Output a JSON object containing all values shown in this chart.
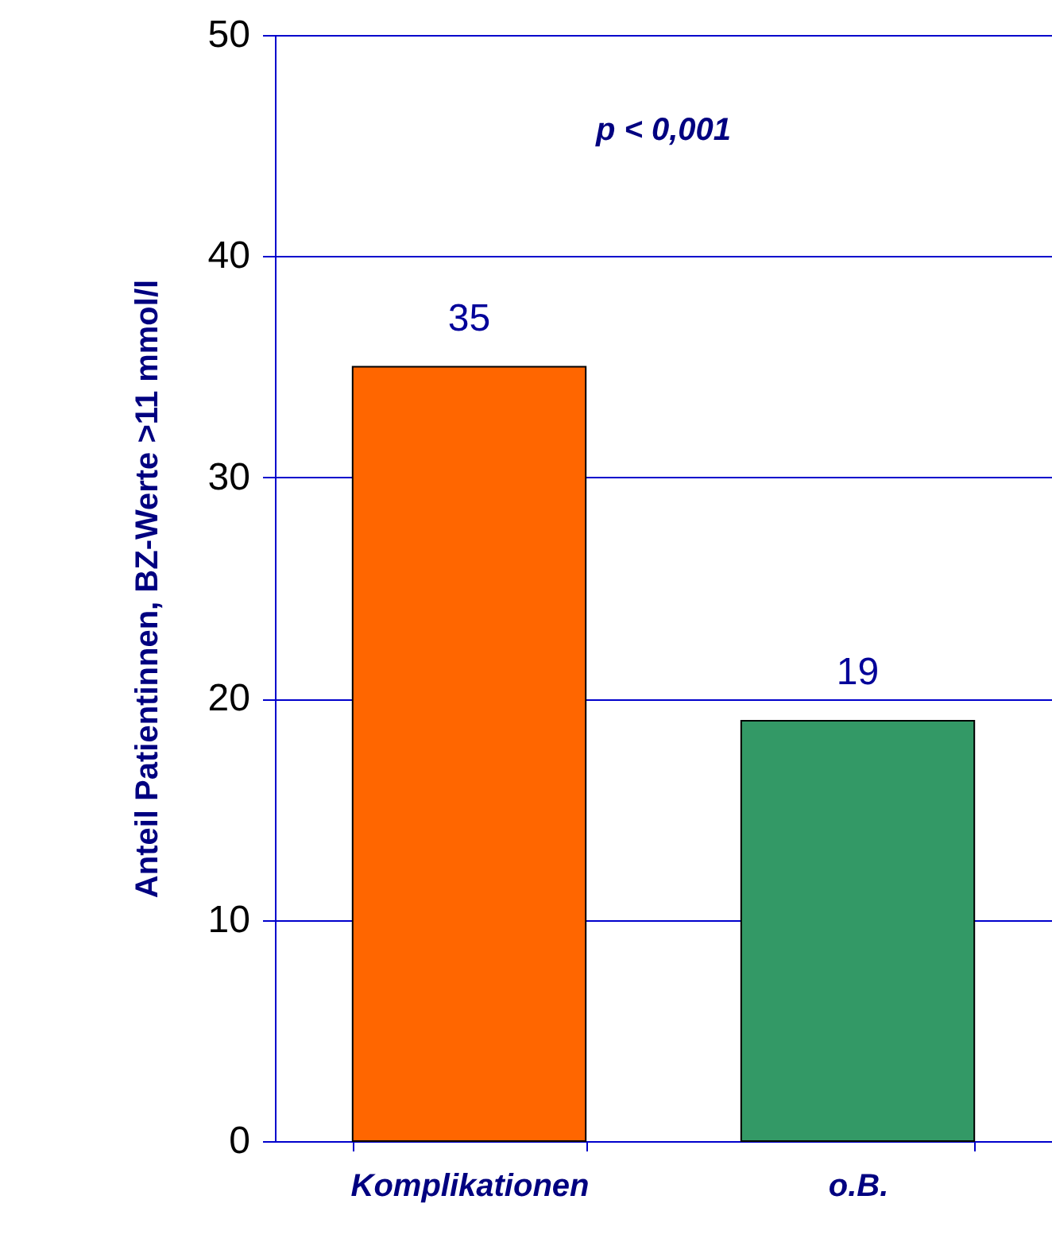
{
  "chart_data": {
    "type": "bar",
    "ylabel": "Anteil Patientinnen, BZ-Werte >11 mmol/l",
    "categories": [
      "Komplikationen",
      "o.B."
    ],
    "values": [
      35,
      19
    ],
    "colors": [
      "#ff6600",
      "#339966"
    ],
    "ylim": [
      0,
      50
    ],
    "yticks": [
      0,
      10,
      20,
      30,
      40,
      50
    ],
    "grid": "y",
    "data_labels": true,
    "annotations": [
      "p < 0,001"
    ]
  }
}
